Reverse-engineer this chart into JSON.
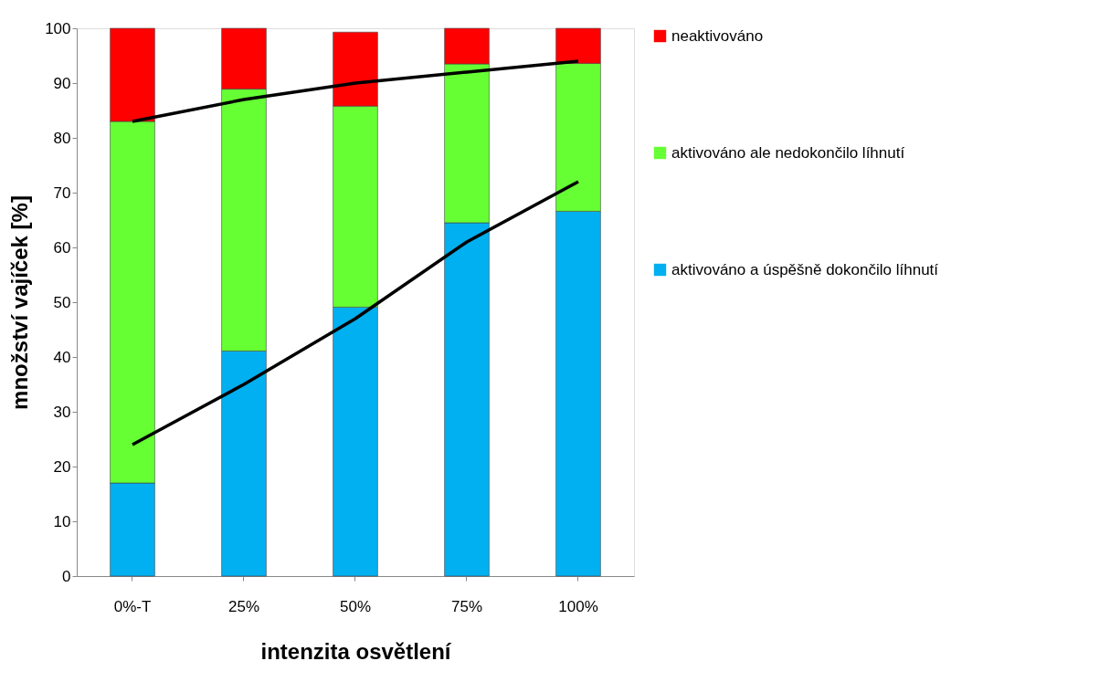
{
  "chart_data": {
    "type": "bar",
    "stacked": true,
    "xlabel": "intenzita osvětlení",
    "ylabel": "množství vajíček [%]",
    "categories": [
      "0%-T",
      "25%",
      "50%",
      "75%",
      "100%"
    ],
    "series": [
      {
        "name": "aktivováno a úspěšně dokončilo líhnutí",
        "color": "#00b0f0",
        "values": [
          17,
          41.1,
          49.1,
          64.5,
          66.6
        ]
      },
      {
        "name": "aktivováno ale nedokončilo líhnutí",
        "color": "#66ff33",
        "values": [
          66,
          47.8,
          36.7,
          29,
          27
        ]
      },
      {
        "name": "neaktivováno",
        "color": "#ff0000",
        "values": [
          17,
          11.1,
          13.5,
          6.5,
          6.4
        ]
      },
      {
        "type": "line",
        "color": "#000000",
        "values": [
          24,
          35,
          47,
          61,
          72
        ]
      },
      {
        "type": "line",
        "color": "#000000",
        "values": [
          83,
          87,
          90,
          92,
          94
        ]
      }
    ],
    "ylim": [
      0,
      100
    ],
    "yticks": [
      0,
      10,
      20,
      30,
      40,
      50,
      60,
      70,
      80,
      90,
      100
    ],
    "grid": false,
    "legend": "right",
    "marker": "none",
    "line_style": "solid"
  }
}
